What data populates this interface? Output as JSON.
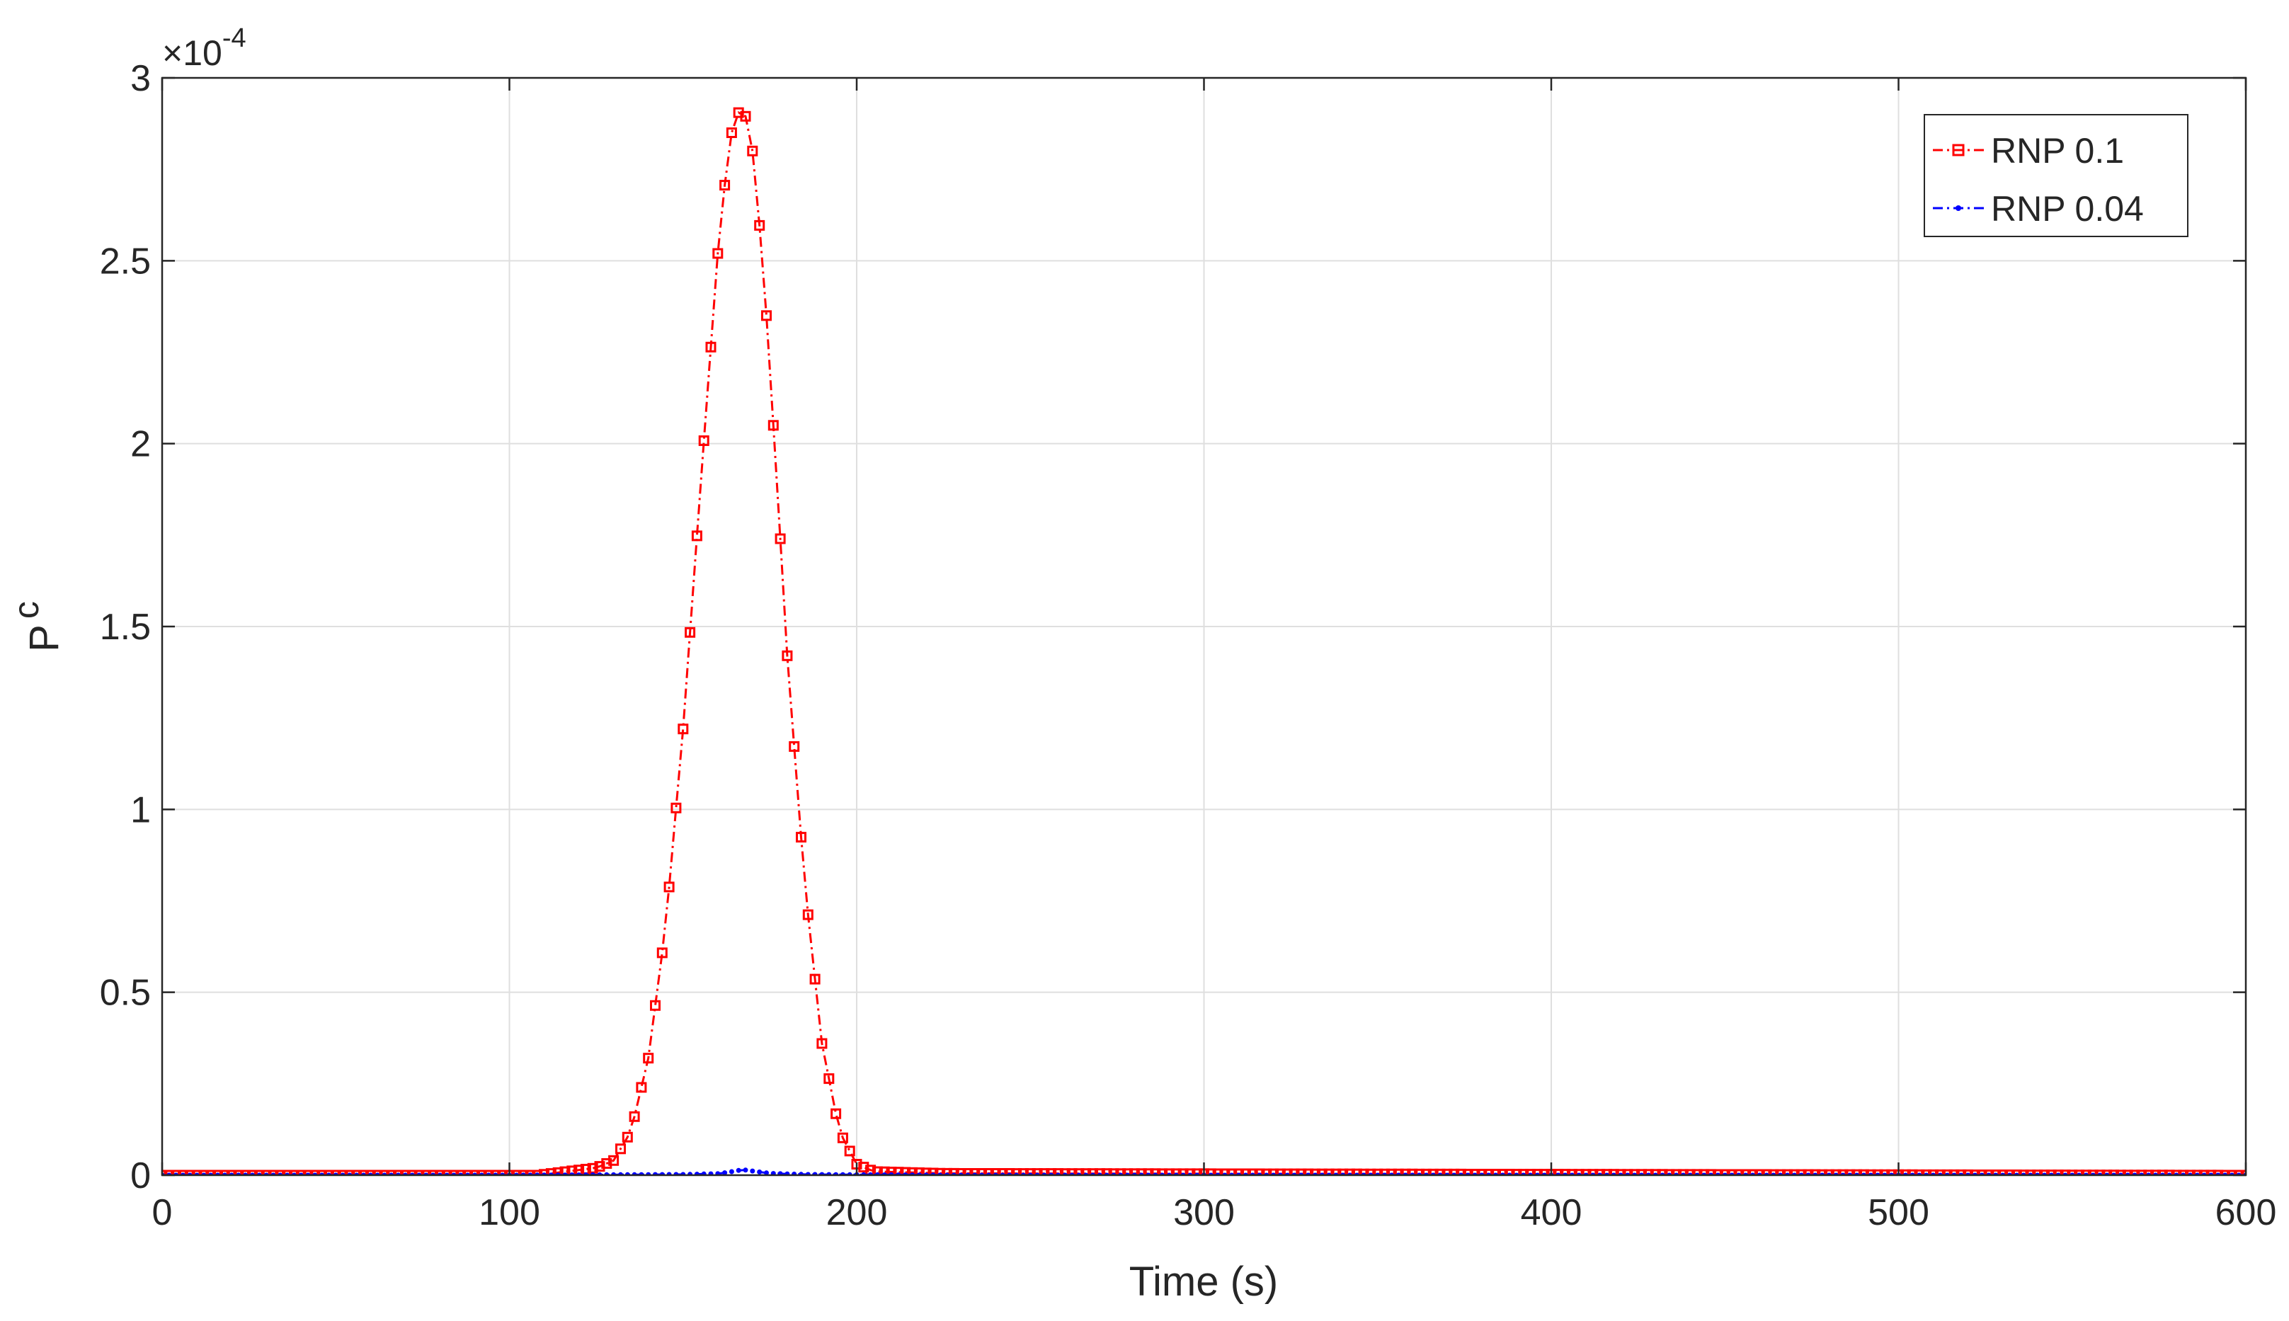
{
  "chart_data": {
    "type": "line",
    "xlabel": "Time (s)",
    "ylabel_main": "P",
    "ylabel_sub": "c",
    "y_multiplier": "×10",
    "y_exponent": "-4",
    "xlim": [
      0,
      600
    ],
    "ylim": [
      0,
      3
    ],
    "x_ticks": [
      0,
      100,
      200,
      300,
      400,
      500,
      600
    ],
    "x_tick_labels": [
      "0",
      "100",
      "200",
      "300",
      "400",
      "500",
      "600"
    ],
    "y_ticks": [
      0,
      0.5,
      1,
      1.5,
      2,
      2.5,
      3
    ],
    "y_tick_labels": [
      "0",
      "0.5",
      "1",
      "1.5",
      "2",
      "2.5",
      "3"
    ],
    "grid": true,
    "legend_position": "top-right",
    "series": [
      {
        "name": "RNP 0.1",
        "color": "#ff0000",
        "marker": "square",
        "line_style": "dash-dot",
        "x": [
          108,
          125,
          130,
          135,
          140,
          145,
          150,
          155,
          160,
          163,
          165,
          167,
          169,
          171,
          174,
          177,
          180,
          185,
          190,
          195,
          200,
          205,
          225,
          600
        ],
        "y": [
          0.0,
          0.02,
          0.04,
          0.12,
          0.32,
          0.68,
          1.22,
          1.88,
          2.52,
          2.8,
          2.9,
          2.91,
          2.88,
          2.72,
          2.35,
          1.9,
          1.42,
          0.8,
          0.36,
          0.12,
          0.03,
          0.01,
          0.005,
          0.0
        ]
      },
      {
        "name": "RNP 0.04",
        "color": "#0000ff",
        "marker": "dot",
        "line_style": "dash-dot",
        "x": [
          0,
          100,
          150,
          160,
          163,
          166,
          168,
          171,
          175,
          185,
          230,
          600
        ],
        "y": [
          0.0,
          0.0,
          0.002,
          0.004,
          0.008,
          0.013,
          0.014,
          0.01,
          0.005,
          0.002,
          0.0,
          0.0
        ]
      }
    ]
  }
}
